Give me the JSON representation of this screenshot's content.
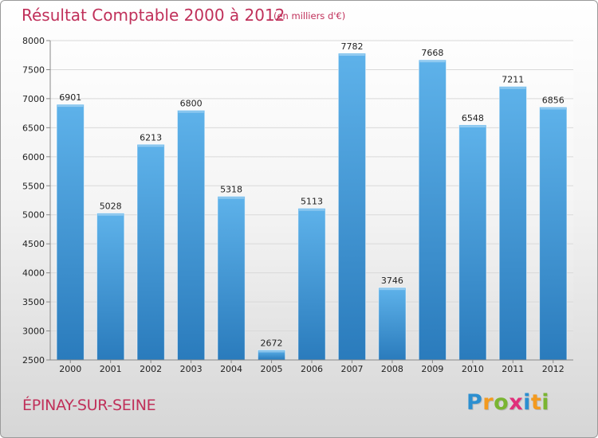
{
  "header": {
    "title": "Résultat Comptable 2000 à 2012",
    "subtitle": "(en milliers d'€)"
  },
  "footer": {
    "commune": "ÉPINAY-SUR-SEINE",
    "logo": [
      "P",
      "r",
      "o",
      "x",
      "i",
      "t",
      "i"
    ],
    "logo_colors": [
      "#2c8fd0",
      "#f39a1f",
      "#7ab532",
      "#e0307a",
      "#2c8fd0",
      "#f39a1f",
      "#7ab532"
    ]
  },
  "chart_data": {
    "type": "bar",
    "title": "Résultat Comptable 2000 à 2012",
    "subtitle": "(en milliers d'€)",
    "xlabel": "",
    "ylabel": "",
    "categories": [
      "2000",
      "2001",
      "2002",
      "2003",
      "2004",
      "2005",
      "2006",
      "2007",
      "2008",
      "2009",
      "2010",
      "2011",
      "2012"
    ],
    "values": [
      6901,
      5028,
      6213,
      6800,
      5318,
      2672,
      5113,
      7782,
      3746,
      7668,
      6548,
      7211,
      6856
    ],
    "ylim": [
      2500,
      8000
    ],
    "yticks": [
      2500,
      3000,
      3500,
      4000,
      4500,
      5000,
      5500,
      6000,
      6500,
      7000,
      7500,
      8000
    ],
    "grid": true,
    "colors": {
      "bar_top": "#5eb2ea",
      "bar_bottom": "#2a7bbc",
      "grid": "#d9d9d9",
      "axis": "#888888"
    }
  }
}
